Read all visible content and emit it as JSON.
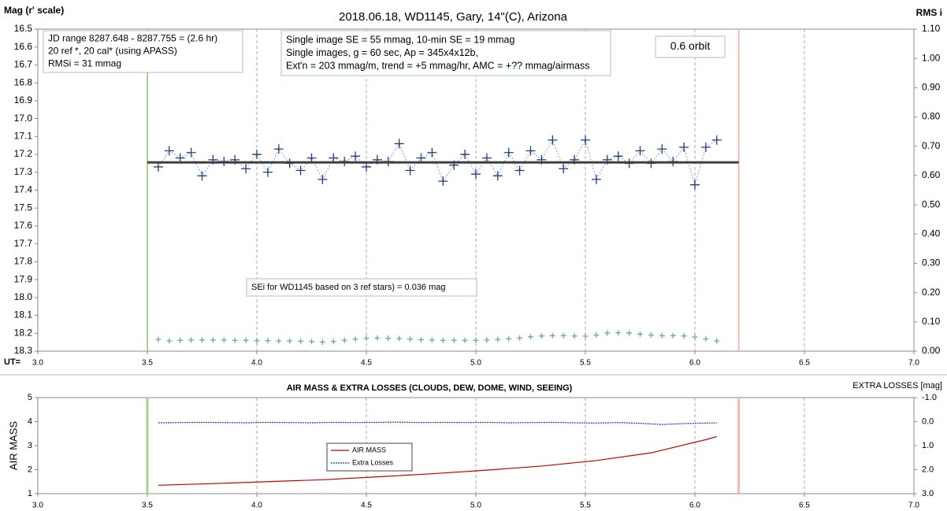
{
  "chart_data": [
    {
      "type": "scatter",
      "title": "2018.06.18,  WD1145, Gary, 14\"(C), Arizona",
      "ylabel": "Mag (r' scale)",
      "y2label": "RMS i",
      "xlabel": "UT=",
      "xlim": [
        3.0,
        7.0
      ],
      "xticks": [
        {
          "value": 3,
          "label": "3.0"
        },
        3.5,
        {
          "value": 4,
          "label": "4.0"
        },
        4.5,
        {
          "value": 5,
          "label": "5.0"
        },
        5.5,
        {
          "value": 6,
          "label": "6.0"
        },
        6.5,
        {
          "value": 7,
          "label": "7.0"
        }
      ],
      "ylim": [
        18.3,
        16.5
      ],
      "yticks": [
        16.5,
        16.6,
        16.7,
        16.8,
        16.9,
        {
          "value": 17,
          "label": "17.0"
        },
        17.1,
        17.2,
        17.3,
        17.4,
        17.5,
        17.6,
        17.7,
        17.8,
        17.9,
        {
          "value": 18,
          "label": "18.0"
        },
        18.1,
        18.2,
        18.3
      ],
      "y2lim": [
        0,
        1.1
      ],
      "y2ticks": [
        {
          "value": 0,
          "label": "0.00"
        },
        {
          "value": 0.1,
          "label": "0.10"
        },
        {
          "value": 0.2,
          "label": "0.20"
        },
        {
          "value": 0.3,
          "label": "0.30"
        },
        {
          "value": 0.4,
          "label": "0.40"
        },
        {
          "value": 0.5,
          "label": "0.50"
        },
        {
          "value": 0.6,
          "label": "0.60"
        },
        {
          "value": 0.7,
          "label": "0.70"
        },
        {
          "value": 0.8,
          "label": "0.80"
        },
        {
          "value": 0.9,
          "label": "0.90"
        },
        {
          "value": 1,
          "label": "1.00"
        },
        {
          "value": 1.1,
          "label": "1.10"
        }
      ],
      "grid": "x",
      "vlines": [
        {
          "x": 3.5,
          "color": "#a9d18e"
        },
        {
          "x": 6.2,
          "color": "#f4b6b6"
        }
      ],
      "series": [
        {
          "color": "#1f3f7a",
          "marker": "plus",
          "dash": "2,2",
          "line_color": "#8fb0d8",
          "x": [
            3.55,
            3.6,
            3.65,
            3.7,
            3.75,
            3.8,
            3.85,
            3.9,
            3.95,
            4,
            4.05,
            4.1,
            4.15,
            4.2,
            4.25,
            4.3,
            4.35,
            4.4,
            4.45,
            4.5,
            4.55,
            4.6,
            4.65,
            4.7,
            4.75,
            4.8,
            4.85,
            4.9,
            4.95,
            5,
            5.05,
            5.1,
            5.15,
            5.2,
            5.25,
            5.3,
            5.35,
            5.4,
            5.45,
            5.5,
            5.55,
            5.6,
            5.65,
            5.7,
            5.75,
            5.8,
            5.85,
            5.9,
            5.95,
            6,
            6.05,
            6.1
          ],
          "values": [
            17.27,
            17.18,
            17.22,
            17.19,
            17.32,
            17.23,
            17.24,
            17.23,
            17.28,
            17.2,
            17.3,
            17.17,
            17.25,
            17.29,
            17.22,
            17.34,
            17.22,
            17.24,
            17.21,
            17.27,
            17.23,
            17.24,
            17.14,
            17.29,
            17.22,
            17.19,
            17.35,
            17.26,
            17.2,
            17.31,
            17.22,
            17.32,
            17.19,
            17.29,
            17.18,
            17.23,
            17.12,
            17.28,
            17.23,
            17.12,
            17.34,
            17.23,
            17.21,
            17.25,
            17.18,
            17.25,
            17.17,
            17.24,
            17.16,
            17.37,
            17.16,
            17.12
          ]
        },
        {
          "color": "#404040",
          "width": 3,
          "x": [
            3.5,
            6.2
          ],
          "values": [
            17.245,
            17.245
          ]
        },
        {
          "color": "#6aa6a6",
          "marker": "plus",
          "axis": "y2",
          "x": [
            3.55,
            3.6,
            3.65,
            3.7,
            3.75,
            3.8,
            3.85,
            3.9,
            3.95,
            4,
            4.05,
            4.1,
            4.15,
            4.2,
            4.25,
            4.3,
            4.35,
            4.4,
            4.45,
            4.5,
            4.55,
            4.6,
            4.65,
            4.7,
            4.75,
            4.8,
            4.85,
            4.9,
            4.95,
            5,
            5.05,
            5.1,
            5.15,
            5.2,
            5.25,
            5.3,
            5.35,
            5.4,
            5.45,
            5.5,
            5.55,
            5.6,
            5.65,
            5.7,
            5.75,
            5.8,
            5.85,
            5.9,
            5.95,
            6,
            6.05,
            6.1
          ],
          "values": [
            0.04,
            0.035,
            0.037,
            0.038,
            0.038,
            0.038,
            0.038,
            0.037,
            0.037,
            0.036,
            0.036,
            0.035,
            0.035,
            0.034,
            0.033,
            0.031,
            0.033,
            0.037,
            0.041,
            0.044,
            0.045,
            0.044,
            0.043,
            0.041,
            0.039,
            0.038,
            0.037,
            0.037,
            0.037,
            0.037,
            0.038,
            0.04,
            0.042,
            0.045,
            0.049,
            0.052,
            0.053,
            0.053,
            0.052,
            0.051,
            0.055,
            0.062,
            0.063,
            0.062,
            0.058,
            0.055,
            0.053,
            0.053,
            0.052,
            0.048,
            0.042,
            0.035
          ]
        }
      ],
      "annotations": [
        [
          "JD range  8287.648 - 8287.755  = (2.6 hr)",
          "20 ref *, 20 cal* (using APASS)",
          "RMSi = 31 mmag"
        ],
        [
          "Single image SE = 55 mmag, 10-min SE = 19 mmag",
          "Single images, g = 60 sec, Ap = 345x4x12b,",
          "Ext'n = 203 mmag/m, trend = +5 mmag/hr, AMC = +?? mmag/airmass"
        ],
        [
          "0.6 orbit"
        ],
        [
          "SEi for WD1145 based on 3 ref stars) = 0.036 mag"
        ]
      ]
    },
    {
      "type": "line",
      "title": "AIR MASS & EXTRA LOSSES (CLOUDS, DEW, DOME, WIND, SEEING)",
      "ylabel": "AIR MASS",
      "y2label": "EXTRA LOSSES [mag]",
      "xlim": [
        3.0,
        7.0
      ],
      "xticks": [
        {
          "value": 3,
          "label": "3.0"
        },
        3.5,
        {
          "value": 4,
          "label": "4.0"
        },
        4.5,
        {
          "value": 5,
          "label": "5.0"
        },
        5.5,
        {
          "value": 6,
          "label": "6.0"
        },
        6.5,
        {
          "value": 7,
          "label": "7.0"
        }
      ],
      "ylim": [
        1,
        5
      ],
      "yticks": [
        1,
        2,
        3,
        4,
        5
      ],
      "y2lim": [
        3,
        -1
      ],
      "y2ticks": [
        {
          "value": -1,
          "label": "-1.0"
        },
        {
          "value": 0,
          "label": "0.0"
        },
        {
          "value": 1,
          "label": "1.0"
        },
        {
          "value": 2,
          "label": "2.0"
        },
        {
          "value": 3,
          "label": "3.0"
        }
      ],
      "grid": "x",
      "legend": true,
      "vlines": [
        {
          "x": 3.5,
          "color": "#a9d18e"
        },
        {
          "x": 6.2,
          "color": "#f4b6b6"
        }
      ],
      "series": [
        {
          "name": "AIR MASS",
          "color": "#c00000",
          "x": [
            3.55,
            3.8,
            4.05,
            4.3,
            4.55,
            4.8,
            5.05,
            5.3,
            5.55,
            5.8,
            6.05,
            6.1
          ],
          "values": [
            1.35,
            1.42,
            1.5,
            1.58,
            1.7,
            1.83,
            1.98,
            2.15,
            2.38,
            2.7,
            3.25,
            3.38
          ]
        },
        {
          "name": "Extra Losses",
          "color": "#1f3f9a",
          "dash": "2,1",
          "axis": "y2",
          "x": [
            3.55,
            3.65,
            3.75,
            3.85,
            3.95,
            4.05,
            4.15,
            4.25,
            4.35,
            4.45,
            4.55,
            4.65,
            4.75,
            4.85,
            4.95,
            5.05,
            5.15,
            5.25,
            5.35,
            5.45,
            5.55,
            5.65,
            5.75,
            5.85,
            5.95,
            6.05,
            6.1
          ],
          "values": [
            0.05,
            0.04,
            0.03,
            0.04,
            0.05,
            0.03,
            0.04,
            0.05,
            0.03,
            0.04,
            0.03,
            0.02,
            0.04,
            0.03,
            0.04,
            0.03,
            0.05,
            0.04,
            0.03,
            0.05,
            0.06,
            0.04,
            0.07,
            0.12,
            0.08,
            0.06,
            0.05
          ]
        }
      ]
    }
  ]
}
